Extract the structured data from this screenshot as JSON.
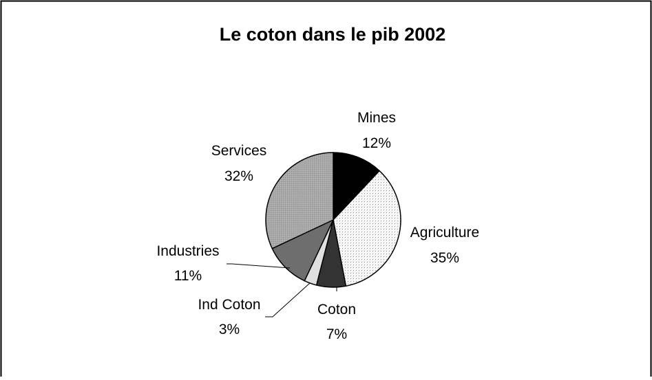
{
  "chart_data": {
    "type": "pie",
    "title": "Le coton dans le pib 2002",
    "slices": [
      {
        "label": "Mines",
        "value": 12,
        "value_text": "12%",
        "color": "#000000"
      },
      {
        "label": "Agriculture",
        "value": 35,
        "value_text": "35%",
        "color": "#f2f2f2",
        "pattern": "dots"
      },
      {
        "label": "Coton",
        "value": 7,
        "value_text": "7%",
        "color": "#333333"
      },
      {
        "label": "Ind Coton",
        "value": 3,
        "value_text": "3%",
        "color": "#e0e0e0"
      },
      {
        "label": "Industries",
        "value": 11,
        "value_text": "11%",
        "color": "#6e6e6e"
      },
      {
        "label": "Services",
        "value": 32,
        "value_text": "32%",
        "color": "#a6a6a6"
      }
    ],
    "legend": "none"
  }
}
